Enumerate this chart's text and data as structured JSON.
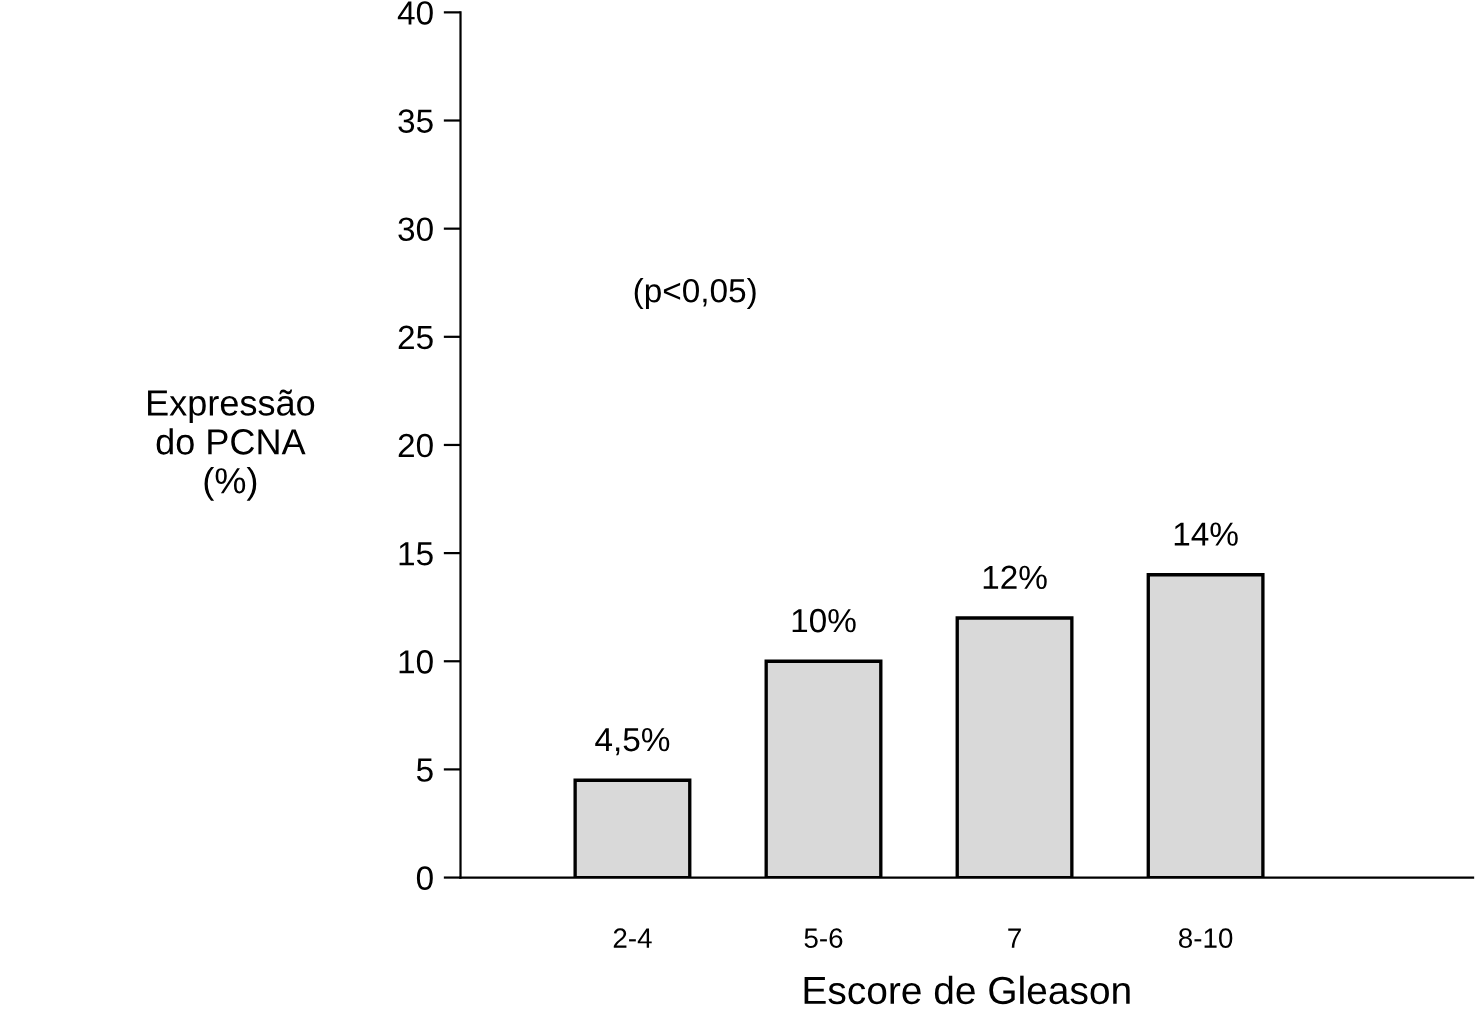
{
  "chart_data": {
    "type": "bar",
    "xlabel": "Escore de Gleason",
    "ylabel": "Expressão\ndo PCNA\n(%)",
    "categories": [
      "2-4",
      "5-6",
      "7",
      "8-10"
    ],
    "values": [
      4.5,
      10,
      12,
      14
    ],
    "value_labels": [
      "4,5%",
      "10%",
      "12%",
      "14%"
    ],
    "color": "#d9d9d9",
    "ylim": [
      0,
      40
    ],
    "yticks": [
      0,
      5,
      10,
      15,
      20,
      25,
      30,
      35,
      40
    ],
    "annotations": [
      "(p<0,05)"
    ],
    "grid": false,
    "legend": false
  }
}
